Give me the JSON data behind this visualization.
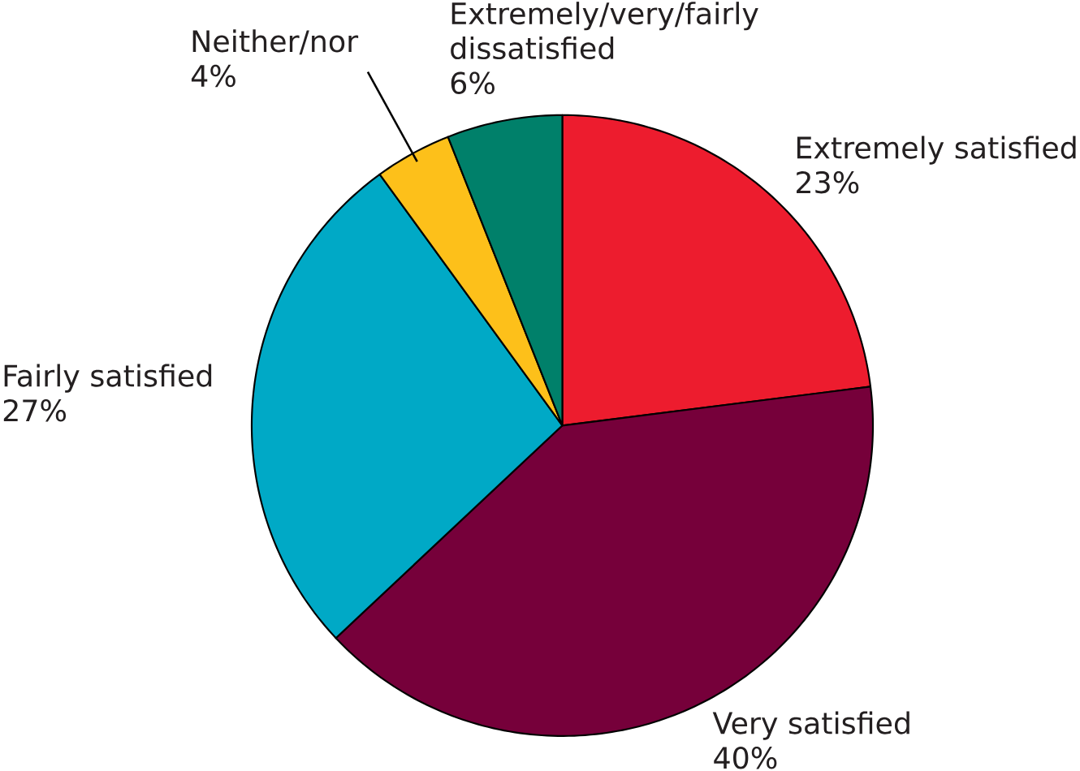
{
  "chart_data": {
    "type": "pie",
    "categories": [
      "Extremely satisfied",
      "Very satisfied",
      "Fairly satisfied",
      "Neither/nor",
      "Extremely/very/fairly dissatisfied"
    ],
    "values": [
      23,
      40,
      27,
      4,
      6
    ],
    "value_labels": [
      "23%",
      "40%",
      "27%",
      "4%",
      "6%"
    ],
    "colors": [
      "#ed1c2e",
      "#76003a",
      "#00a9c6",
      "#fdc01a",
      "#00806a"
    ]
  }
}
